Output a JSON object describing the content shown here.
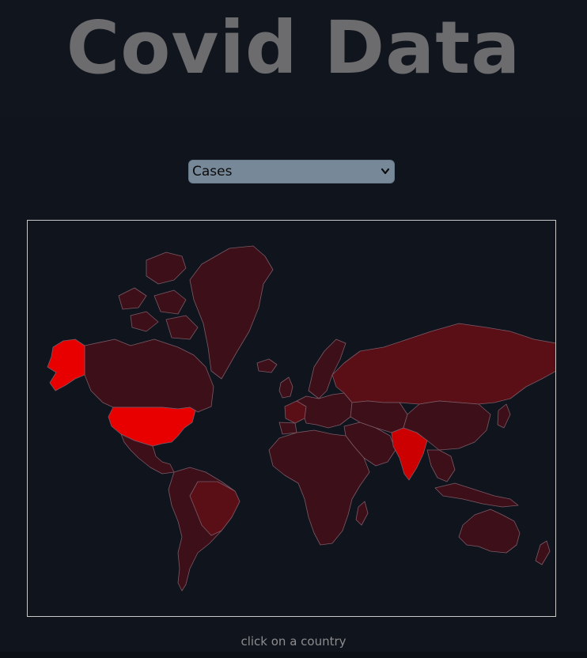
{
  "page": {
    "title": "Covid Data",
    "hint": "click on a country"
  },
  "metric_select": {
    "selected": "Cases",
    "options": [
      "Cases"
    ]
  },
  "map": {
    "type": "choropleth",
    "projection": "mercator",
    "colors": {
      "background": "#10141d",
      "border": "#7a5a66",
      "low": "#3d0f18",
      "mid": "#5a0f16",
      "high": "#cc0000",
      "highest": "#e80000"
    },
    "regions": [
      {
        "id": "usa-alaska",
        "level": "highest"
      },
      {
        "id": "usa",
        "level": "highest"
      },
      {
        "id": "india",
        "level": "high"
      },
      {
        "id": "france",
        "level": "mid"
      },
      {
        "id": "brazil",
        "level": "mid"
      },
      {
        "id": "russia",
        "level": "mid"
      },
      {
        "id": "canada",
        "level": "low"
      },
      {
        "id": "greenland",
        "level": "low"
      },
      {
        "id": "mexico",
        "level": "low"
      },
      {
        "id": "south-america",
        "level": "low"
      },
      {
        "id": "europe",
        "level": "low"
      },
      {
        "id": "africa",
        "level": "low"
      },
      {
        "id": "middle-east",
        "level": "low"
      },
      {
        "id": "central-asia",
        "level": "low"
      },
      {
        "id": "china",
        "level": "low"
      },
      {
        "id": "southeast-asia",
        "level": "low"
      },
      {
        "id": "japan",
        "level": "low"
      },
      {
        "id": "australia",
        "level": "low"
      },
      {
        "id": "new-zealand",
        "level": "low"
      },
      {
        "id": "indonesia",
        "level": "low"
      },
      {
        "id": "uk",
        "level": "low"
      },
      {
        "id": "scandinavia",
        "level": "low"
      },
      {
        "id": "iceland",
        "level": "low"
      },
      {
        "id": "madagascar",
        "level": "low"
      },
      {
        "id": "arctic-islands",
        "level": "low"
      }
    ]
  }
}
